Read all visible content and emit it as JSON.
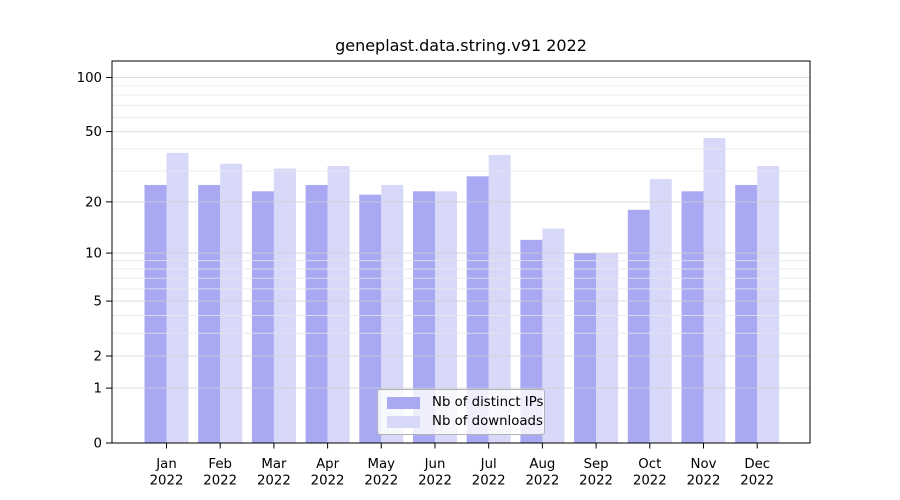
{
  "chart_data": {
    "type": "bar",
    "title": "geneplast.data.string.v91 2022",
    "xlabel": "",
    "ylabel": "",
    "year_label": "2022",
    "categories": [
      "Jan",
      "Feb",
      "Mar",
      "Apr",
      "May",
      "Jun",
      "Jul",
      "Aug",
      "Sep",
      "Oct",
      "Nov",
      "Dec"
    ],
    "series": [
      {
        "name": "Nb of distinct IPs",
        "color": "#a8a8f3",
        "values": [
          25,
          25,
          23,
          25,
          22,
          23,
          28,
          12,
          10,
          18,
          23,
          25
        ]
      },
      {
        "name": "Nb of downloads",
        "color": "#d8d8f8",
        "values": [
          38,
          33,
          31,
          32,
          25,
          23,
          37,
          14,
          10,
          27,
          46,
          32
        ]
      }
    ],
    "yscale": "log1p",
    "yticks": [
      0,
      1,
      2,
      5,
      10,
      20,
      50,
      100
    ],
    "minor_gridlines": [
      3,
      4,
      6,
      7,
      8,
      9,
      30,
      40,
      60,
      70,
      80,
      90
    ],
    "ylim": [
      0,
      124
    ],
    "grid": true,
    "legend_position": "lower center",
    "colors": {
      "axis": "#000000",
      "major_grid": "#d2d2d2",
      "minor_grid": "#e7e7e7",
      "text": "#000000"
    }
  }
}
